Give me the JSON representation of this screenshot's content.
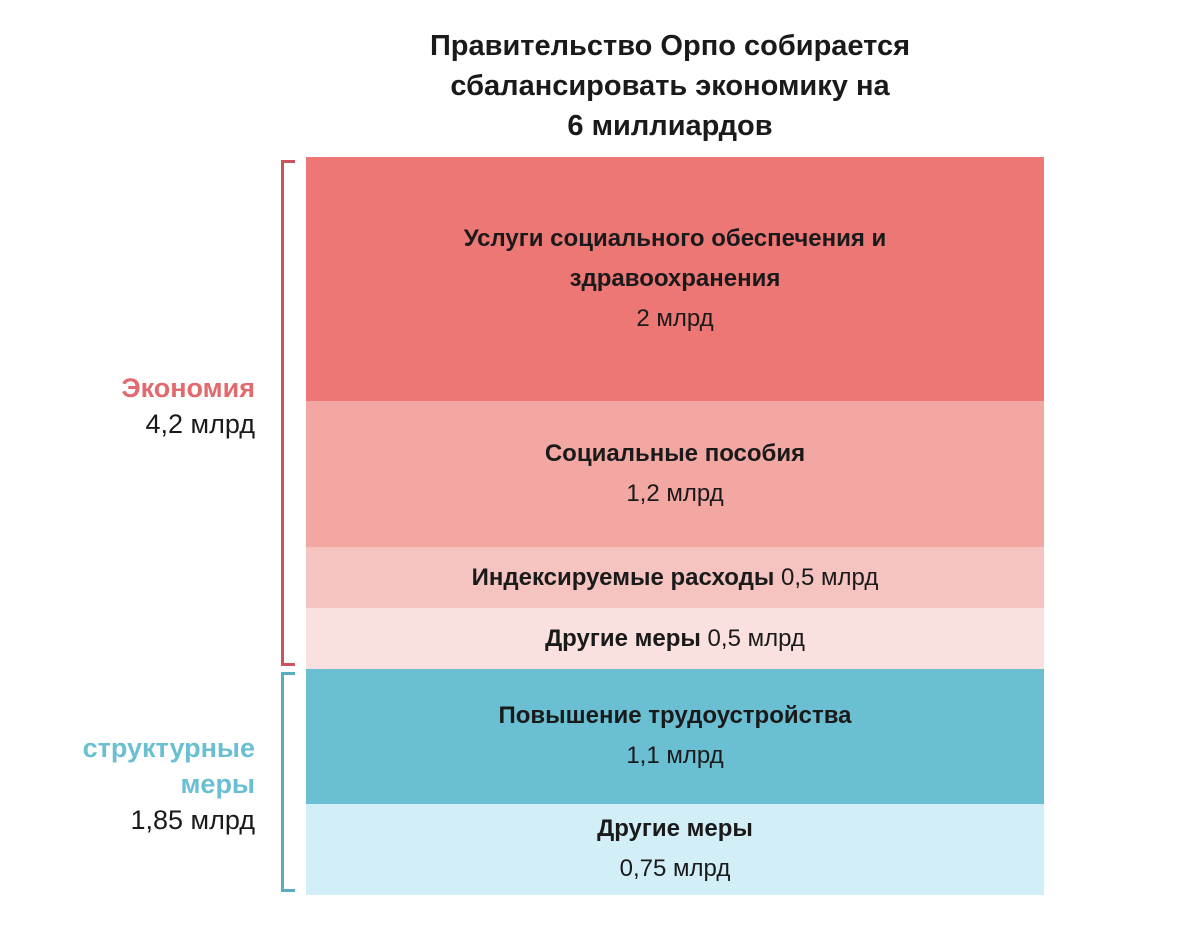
{
  "chart_data": {
    "type": "bar",
    "subtype": "stacked-single-column",
    "title_lines": [
      "Правительство Орпо собирается",
      "сбалансировать экономику на",
      "6 миллиардов"
    ],
    "unit": "млрд",
    "segments": [
      {
        "name": "Услуги социального обеспечения и здравоохранения",
        "value": 2,
        "label": "2 млрд",
        "color": "#ed7775",
        "layout": "stacked"
      },
      {
        "name": "Социальные пособия",
        "value": 1.2,
        "label": "1,2 млрд",
        "color": "#f2a7a3",
        "layout": "stacked"
      },
      {
        "name": "Индексируемые расходы",
        "value": 0.5,
        "label": "0,5 млрд",
        "color": "#f6c4c0",
        "layout": "inline"
      },
      {
        "name": "Другие меры",
        "value": 0.5,
        "label": "0,5 млрд",
        "color": "#fae1df",
        "layout": "inline"
      },
      {
        "name": "Повышение трудоустройства",
        "value": 1.1,
        "label": "1,1 млрд",
        "color": "#6bbfd3",
        "layout": "stacked"
      },
      {
        "name": "Другие меры",
        "value": 0.75,
        "label": "0,75 млрд",
        "color": "#d2eff8",
        "layout": "stacked"
      }
    ],
    "groups": [
      {
        "name_lines": [
          "Экономия"
        ],
        "value_label": "4,2 млрд",
        "value": 4.2,
        "color": "#e06a6e",
        "bracket_color": "#c9545b",
        "segment_range": [
          0,
          3
        ]
      },
      {
        "name_lines": [
          "структурные",
          "меры"
        ],
        "value_label": "1,85 млрд",
        "value": 1.85,
        "color": "#6bbfd3",
        "bracket_color": "#5aaebd",
        "segment_range": [
          4,
          5
        ]
      }
    ]
  }
}
